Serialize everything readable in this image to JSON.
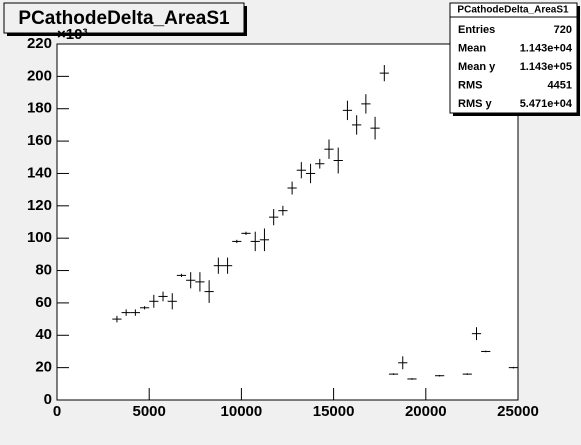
{
  "chart_data": {
    "type": "errorbar",
    "title": "PCathodeDelta_AreaS1",
    "y_exponent_label": "×10³",
    "x": [
      3250,
      3750,
      4250,
      4750,
      5250,
      5750,
      6250,
      6750,
      7250,
      7750,
      8250,
      8750,
      9250,
      9750,
      10250,
      10750,
      11250,
      11750,
      12250,
      12750,
      13250,
      13750,
      14250,
      14750,
      15250,
      15750,
      16250,
      16750,
      17250,
      17750,
      18250,
      18750,
      19250,
      20750,
      22250,
      22750,
      23250,
      24750
    ],
    "values": [
      50,
      54,
      54,
      57,
      61,
      64,
      61,
      77,
      74,
      73,
      67,
      83,
      83,
      98,
      103,
      98,
      99,
      113,
      117,
      131,
      142,
      140,
      146,
      155,
      148,
      179,
      170,
      183,
      168,
      202,
      16,
      23,
      13,
      15,
      16,
      41,
      30,
      20
    ],
    "errors": [
      2,
      2,
      2,
      1,
      4,
      3,
      5,
      1,
      5,
      6,
      7,
      5,
      5,
      1,
      1,
      6,
      7,
      5,
      3,
      4,
      5,
      6,
      3,
      6,
      8,
      6,
      6,
      6,
      7,
      5,
      0.5,
      4,
      0.5,
      0.5,
      0.5,
      4,
      0.5,
      0.5
    ],
    "xerr": 250,
    "color": "#000000",
    "xlim": [
      0,
      25000
    ],
    "ylim": [
      0,
      220
    ],
    "xticks": [
      0,
      5000,
      10000,
      15000,
      20000,
      25000
    ],
    "yticks": [
      0,
      20,
      40,
      60,
      80,
      100,
      120,
      140,
      160,
      180,
      200,
      220
    ],
    "stats": {
      "title": "PCathodeDelta_AreaS1",
      "rows": [
        [
          "Entries",
          "720"
        ],
        [
          "Mean",
          "1.143e+04"
        ],
        [
          "Mean y",
          "1.143e+05"
        ],
        [
          "RMS",
          "4451"
        ],
        [
          "RMS y",
          "5.471e+04"
        ]
      ]
    }
  }
}
